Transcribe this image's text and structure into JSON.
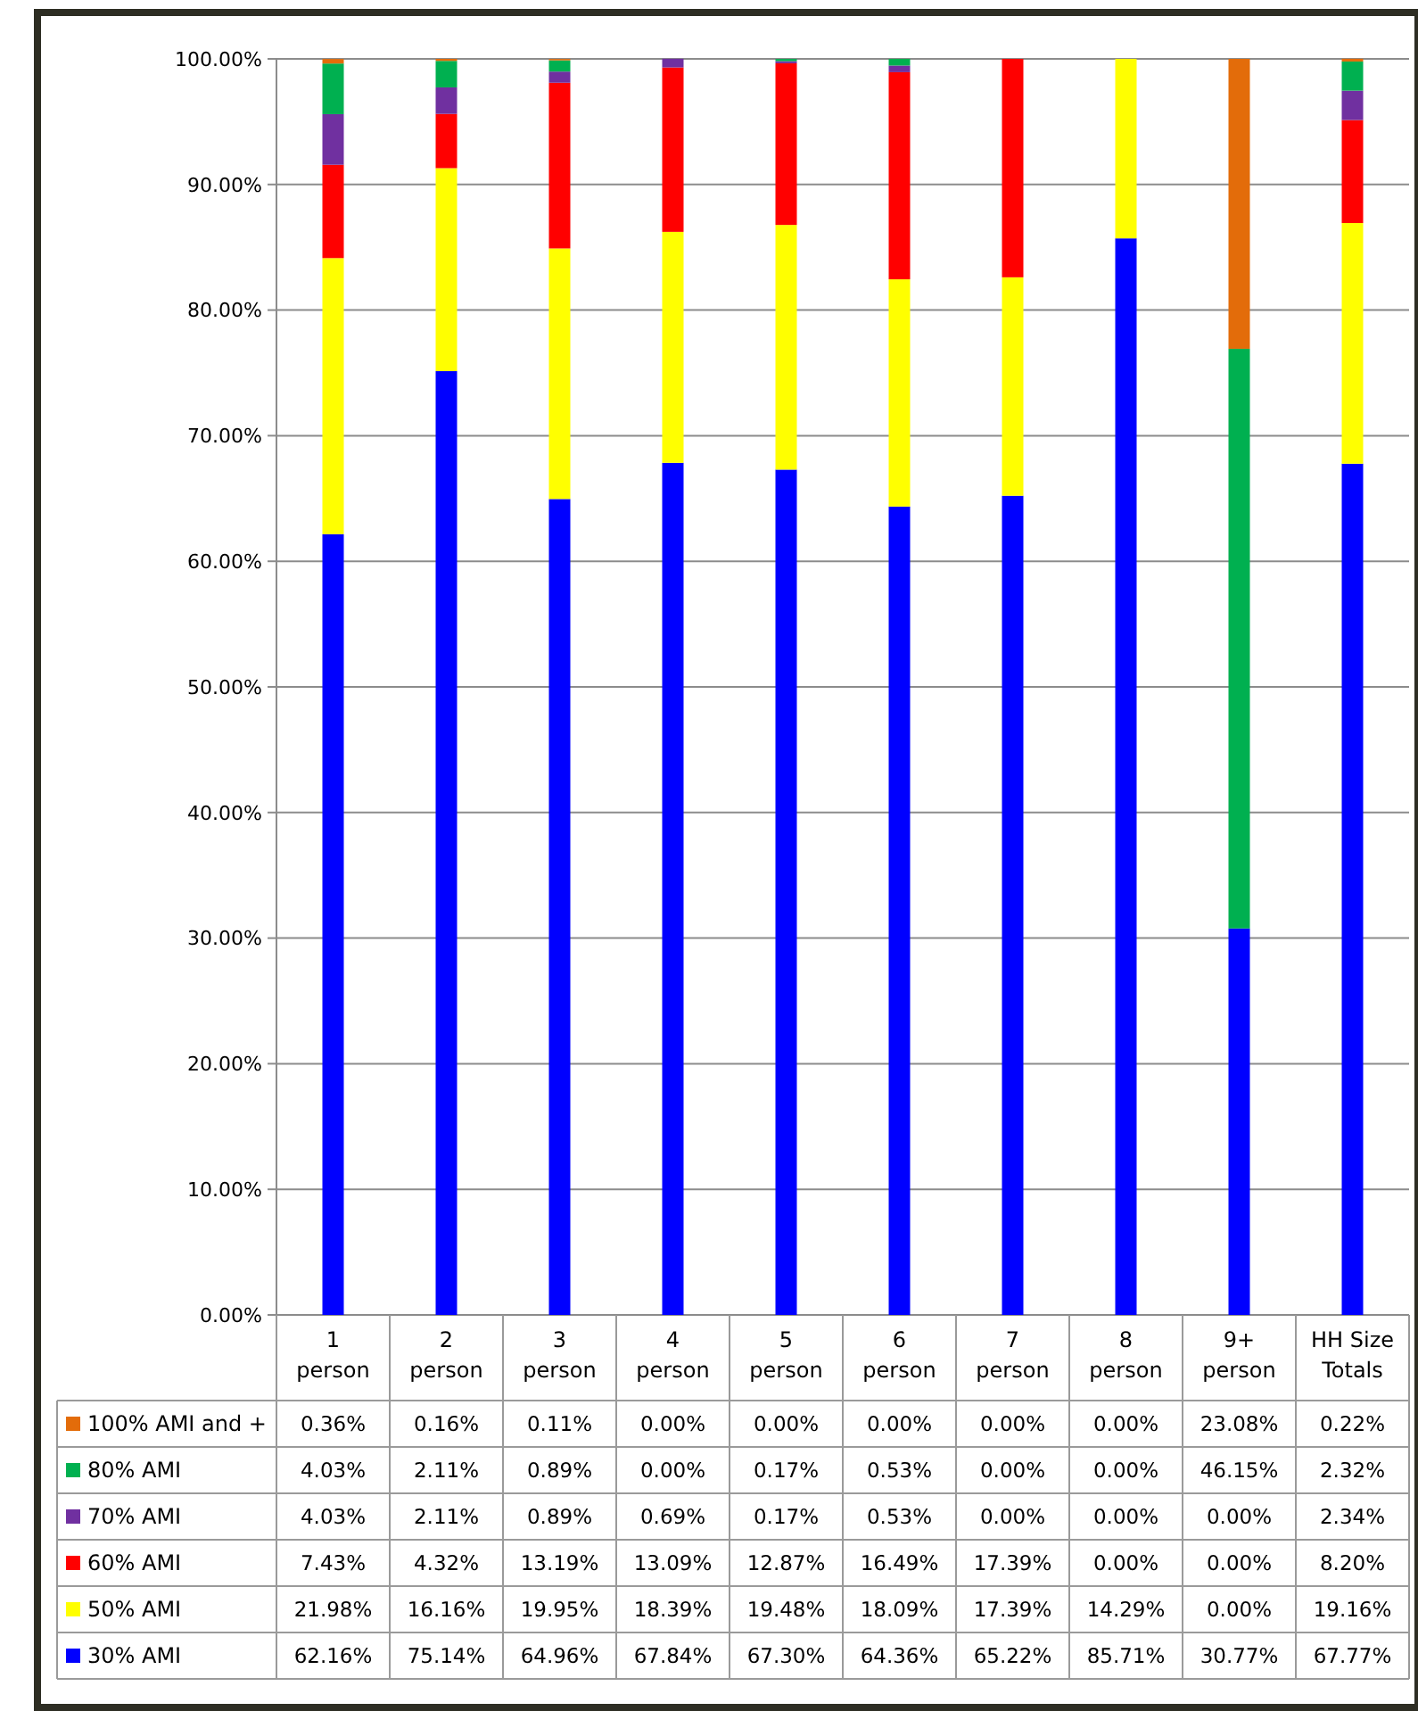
{
  "chart_data": {
    "type": "bar",
    "stacked": true,
    "categories": [
      "1\nperson",
      "2\nperson",
      "3\nperson",
      "4\nperson",
      "5\nperson",
      "6\nperson",
      "7\nperson",
      "8\nperson",
      "9+\nperson",
      "HH Size\nTotals"
    ],
    "ylim": [
      0,
      100
    ],
    "yticks": [
      {
        "value": 0,
        "label": "0.00%"
      },
      {
        "value": 10,
        "label": "10.00%"
      },
      {
        "value": 20,
        "label": "20.00%"
      },
      {
        "value": 30,
        "label": "30.00%"
      },
      {
        "value": 40,
        "label": "40.00%"
      },
      {
        "value": 50,
        "label": "50.00%"
      },
      {
        "value": 60,
        "label": "60.00%"
      },
      {
        "value": 70,
        "label": "70.00%"
      },
      {
        "value": 80,
        "label": "80.00%"
      },
      {
        "value": 90,
        "label": "90.00%"
      },
      {
        "value": 100,
        "label": "100.00%"
      }
    ],
    "grid": "y",
    "legend": "bottom",
    "series": [
      {
        "name": "30% AMI",
        "color": "#0000ff",
        "values": [
          62.16,
          75.14,
          64.96,
          67.84,
          67.3,
          64.36,
          65.22,
          85.71,
          30.77,
          67.77
        ],
        "value_labels": [
          "62.16%",
          "75.14%",
          "64.96%",
          "67.84%",
          "67.30%",
          "64.36%",
          "65.22%",
          "85.71%",
          "30.77%",
          "67.77%"
        ]
      },
      {
        "name": "50% AMI",
        "color": "#ffff00",
        "values": [
          21.98,
          16.16,
          19.95,
          18.39,
          19.48,
          18.09,
          17.39,
          14.29,
          0,
          19.16
        ],
        "value_labels": [
          "21.98%",
          "16.16%",
          "19.95%",
          "18.39%",
          "19.48%",
          "18.09%",
          "17.39%",
          "14.29%",
          "0.00%",
          "19.16%"
        ]
      },
      {
        "name": "60% AMI",
        "color": "#ff0000",
        "values": [
          7.43,
          4.32,
          13.19,
          13.09,
          12.87,
          16.49,
          17.39,
          0,
          0,
          8.2
        ],
        "value_labels": [
          "7.43%",
          "4.32%",
          "13.19%",
          "13.09%",
          "12.87%",
          "16.49%",
          "17.39%",
          "0.00%",
          "0.00%",
          "8.20%"
        ]
      },
      {
        "name": "70% AMI",
        "color": "#7030a0",
        "values": [
          4.03,
          2.11,
          0.89,
          0.69,
          0.17,
          0.53,
          0,
          0,
          0,
          2.34
        ],
        "value_labels": [
          "4.03%",
          "2.11%",
          "0.89%",
          "0.69%",
          "0.17%",
          "0.53%",
          "0.00%",
          "0.00%",
          "0.00%",
          "2.34%"
        ]
      },
      {
        "name": "80% AMI",
        "color": "#00b050",
        "values": [
          4.03,
          2.11,
          0.89,
          0,
          0.17,
          0.53,
          0,
          0,
          46.15,
          2.32
        ],
        "value_labels": [
          "4.03%",
          "2.11%",
          "0.89%",
          "0.00%",
          "0.17%",
          "0.53%",
          "0.00%",
          "0.00%",
          "46.15%",
          "2.32%"
        ]
      },
      {
        "name": "100% AMI and +",
        "color": "#e36c0a",
        "values": [
          0.36,
          0.16,
          0.11,
          0,
          0,
          0,
          0,
          0,
          23.08,
          0.22
        ],
        "value_labels": [
          "0.36%",
          "0.16%",
          "0.11%",
          "0.00%",
          "0.00%",
          "0.00%",
          "0.00%",
          "0.00%",
          "23.08%",
          "0.22%"
        ]
      }
    ]
  }
}
